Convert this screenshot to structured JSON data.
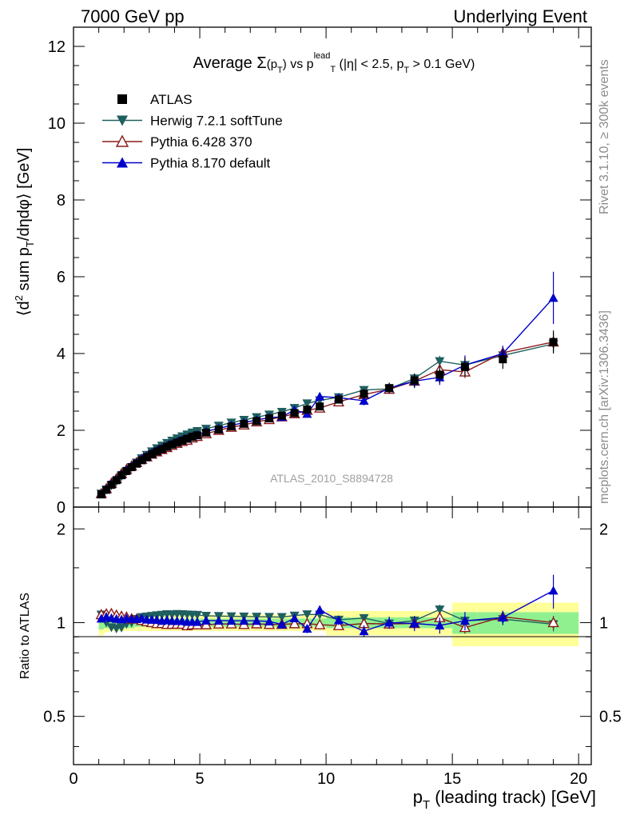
{
  "header": {
    "left": "7000 GeV pp",
    "right": "Underlying Event"
  },
  "side_labels": {
    "rivet": "Rivet 3.1.10, ≥ 300k events",
    "mcplots": "mcplots.cern.ch [arXiv:1306.3436]"
  },
  "chart_data": {
    "type": "scatter",
    "title": "Average Σ(p_T) vs p_T^lead (|η| < 2.5, p_T > 0.1 GeV)",
    "analysis_label": "ATLAS_2010_S8894728",
    "xlabel": "p_T (leading track) [GeV]",
    "ylabel": "⟨d² sum p_T/dηdφ⟩ [GeV]",
    "ratio_ylabel": "Ratio to ATLAS",
    "xlim": [
      0,
      20.5
    ],
    "ylim": [
      0,
      12.5
    ],
    "ratio_ylim": [
      0.35,
      2.35
    ],
    "ratio_scale": "log",
    "x_ticks": [
      "0",
      "5",
      "10",
      "15",
      "20"
    ],
    "y_ticks": [
      "0",
      "2",
      "4",
      "6",
      "8",
      "10",
      "12"
    ],
    "ratio_ticks": [
      "0.5",
      "1",
      "2"
    ],
    "legend_position": "top-left",
    "x": [
      1.1,
      1.3,
      1.5,
      1.7,
      1.9,
      2.1,
      2.3,
      2.5,
      2.7,
      2.9,
      3.1,
      3.3,
      3.5,
      3.7,
      3.9,
      4.1,
      4.3,
      4.5,
      4.7,
      4.9,
      5.25,
      5.75,
      6.25,
      6.75,
      7.25,
      7.75,
      8.25,
      8.75,
      9.25,
      9.75,
      10.5,
      11.5,
      12.5,
      13.5,
      14.5,
      15.5,
      17.0,
      19.0
    ],
    "series": [
      {
        "name": "ATLAS",
        "color": "#000000",
        "marker": "square",
        "values": [
          0.33,
          0.45,
          0.58,
          0.7,
          0.83,
          0.94,
          1.04,
          1.13,
          1.22,
          1.3,
          1.38,
          1.45,
          1.51,
          1.57,
          1.63,
          1.68,
          1.73,
          1.78,
          1.83,
          1.87,
          1.94,
          2.02,
          2.1,
          2.17,
          2.24,
          2.31,
          2.38,
          2.45,
          2.54,
          2.62,
          2.8,
          2.95,
          3.1,
          3.3,
          3.45,
          3.65,
          3.85,
          4.3
        ],
        "errors": [
          0.02,
          0.02,
          0.02,
          0.02,
          0.02,
          0.02,
          0.02,
          0.02,
          0.02,
          0.02,
          0.02,
          0.02,
          0.02,
          0.02,
          0.02,
          0.02,
          0.02,
          0.02,
          0.03,
          0.03,
          0.03,
          0.03,
          0.04,
          0.04,
          0.05,
          0.05,
          0.06,
          0.07,
          0.07,
          0.08,
          0.1,
          0.12,
          0.14,
          0.18,
          0.22,
          0.25,
          0.25,
          0.3
        ]
      },
      {
        "name": "Herwig 7.2.1 softTune",
        "color": "#1f5f5f",
        "marker": "triangle-down",
        "values": [
          0.35,
          0.45,
          0.56,
          0.67,
          0.8,
          0.93,
          1.04,
          1.16,
          1.27,
          1.36,
          1.45,
          1.53,
          1.6,
          1.67,
          1.73,
          1.79,
          1.84,
          1.89,
          1.94,
          1.98,
          2.04,
          2.12,
          2.2,
          2.27,
          2.34,
          2.41,
          2.48,
          2.58,
          2.7,
          2.78,
          2.86,
          3.05,
          3.08,
          3.35,
          3.8,
          3.7,
          3.95,
          4.25
        ],
        "errors": [
          0.01,
          0.01,
          0.01,
          0.01,
          0.01,
          0.01,
          0.01,
          0.01,
          0.01,
          0.01,
          0.01,
          0.01,
          0.01,
          0.01,
          0.02,
          0.02,
          0.02,
          0.02,
          0.02,
          0.02,
          0.02,
          0.03,
          0.03,
          0.03,
          0.04,
          0.04,
          0.05,
          0.05,
          0.06,
          0.06,
          0.07,
          0.08,
          0.1,
          0.12,
          0.14,
          0.16,
          0.18,
          0.22
        ]
      },
      {
        "name": "Pythia 6.428 370",
        "color": "#8b1a1a",
        "marker": "triangle-up-open",
        "values": [
          0.35,
          0.48,
          0.62,
          0.74,
          0.87,
          0.98,
          1.07,
          1.16,
          1.24,
          1.31,
          1.38,
          1.44,
          1.5,
          1.55,
          1.61,
          1.66,
          1.71,
          1.74,
          1.8,
          1.84,
          1.91,
          2.0,
          2.08,
          2.14,
          2.22,
          2.28,
          2.35,
          2.43,
          2.52,
          2.58,
          2.74,
          2.93,
          3.07,
          3.28,
          3.58,
          3.52,
          4.02,
          4.3
        ],
        "errors": [
          0.01,
          0.01,
          0.01,
          0.01,
          0.01,
          0.01,
          0.01,
          0.01,
          0.01,
          0.01,
          0.01,
          0.01,
          0.01,
          0.01,
          0.02,
          0.02,
          0.02,
          0.02,
          0.02,
          0.02,
          0.02,
          0.03,
          0.03,
          0.03,
          0.04,
          0.04,
          0.05,
          0.05,
          0.06,
          0.06,
          0.07,
          0.08,
          0.1,
          0.12,
          0.14,
          0.16,
          0.18,
          0.22
        ]
      },
      {
        "name": "Pythia 8.170 default",
        "color": "#0000cc",
        "marker": "triangle-up",
        "values": [
          0.34,
          0.47,
          0.6,
          0.72,
          0.85,
          0.97,
          1.07,
          1.16,
          1.26,
          1.33,
          1.41,
          1.48,
          1.53,
          1.6,
          1.65,
          1.7,
          1.75,
          1.79,
          1.84,
          1.88,
          1.97,
          2.05,
          2.13,
          2.2,
          2.27,
          2.33,
          2.35,
          2.53,
          2.43,
          2.88,
          2.85,
          2.77,
          3.1,
          3.28,
          3.38,
          3.7,
          4.0,
          5.45
        ],
        "errors": [
          0.01,
          0.01,
          0.01,
          0.01,
          0.01,
          0.01,
          0.01,
          0.01,
          0.01,
          0.01,
          0.01,
          0.01,
          0.01,
          0.01,
          0.02,
          0.02,
          0.02,
          0.02,
          0.02,
          0.02,
          0.03,
          0.03,
          0.03,
          0.04,
          0.04,
          0.05,
          0.06,
          0.07,
          0.08,
          0.09,
          0.1,
          0.12,
          0.14,
          0.18,
          0.2,
          0.25,
          0.2,
          0.68
        ]
      }
    ],
    "ratio_bands": {
      "x_edges": [
        1.0,
        1.2,
        1.4,
        1.6,
        1.8,
        2.0,
        2.2,
        2.4,
        2.6,
        2.8,
        3.0,
        3.2,
        3.4,
        3.6,
        3.8,
        4.0,
        4.2,
        4.4,
        4.6,
        4.8,
        5.0,
        5.5,
        6.0,
        6.5,
        7.0,
        7.5,
        8.0,
        8.5,
        9.0,
        9.5,
        10.0,
        11.0,
        12.0,
        13.0,
        14.0,
        15.0,
        16.0,
        18.0,
        20.0
      ],
      "stat": [
        0.05,
        0.04,
        0.04,
        0.04,
        0.04,
        0.04,
        0.04,
        0.03,
        0.03,
        0.03,
        0.03,
        0.03,
        0.03,
        0.03,
        0.03,
        0.03,
        0.03,
        0.03,
        0.03,
        0.03,
        0.03,
        0.03,
        0.03,
        0.03,
        0.03,
        0.03,
        0.03,
        0.03,
        0.03,
        0.03,
        0.04,
        0.04,
        0.04,
        0.04,
        0.04,
        0.08,
        0.08,
        0.08
      ],
      "total": [
        0.09,
        0.07,
        0.06,
        0.06,
        0.06,
        0.06,
        0.06,
        0.06,
        0.06,
        0.06,
        0.06,
        0.06,
        0.06,
        0.06,
        0.06,
        0.06,
        0.06,
        0.06,
        0.06,
        0.06,
        0.06,
        0.06,
        0.06,
        0.06,
        0.06,
        0.06,
        0.06,
        0.06,
        0.06,
        0.06,
        0.09,
        0.09,
        0.09,
        0.09,
        0.09,
        0.16,
        0.16,
        0.16
      ],
      "stat_color": "#90f090",
      "total_color": "#ffff99"
    }
  }
}
